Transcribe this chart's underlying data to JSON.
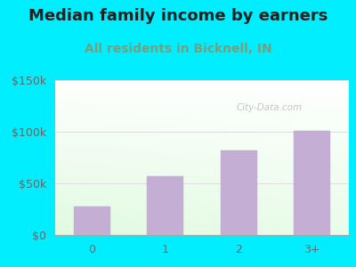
{
  "title": "Median family income by earners",
  "subtitle": "All residents in Bicknell, IN",
  "categories": [
    "0",
    "1",
    "2",
    "3+"
  ],
  "values": [
    28000,
    57000,
    82000,
    101000
  ],
  "bar_color": "#c4aed4",
  "bar_edge_color": "#c4aed4",
  "title_fontsize": 13,
  "subtitle_fontsize": 10,
  "subtitle_color": "#7a9e7a",
  "title_color": "#222222",
  "background_outer": "#00eeff",
  "background_inner_left": "#c8e6c8",
  "background_inner_right": "#f5f0fa",
  "ylim": [
    0,
    150000
  ],
  "yticks": [
    0,
    50000,
    100000,
    150000
  ],
  "ytick_labels": [
    "$0",
    "$50k",
    "$100k",
    "$150k"
  ],
  "watermark": "City-Data.com",
  "grid_color": "#dddddd",
  "tick_color": "#666666"
}
